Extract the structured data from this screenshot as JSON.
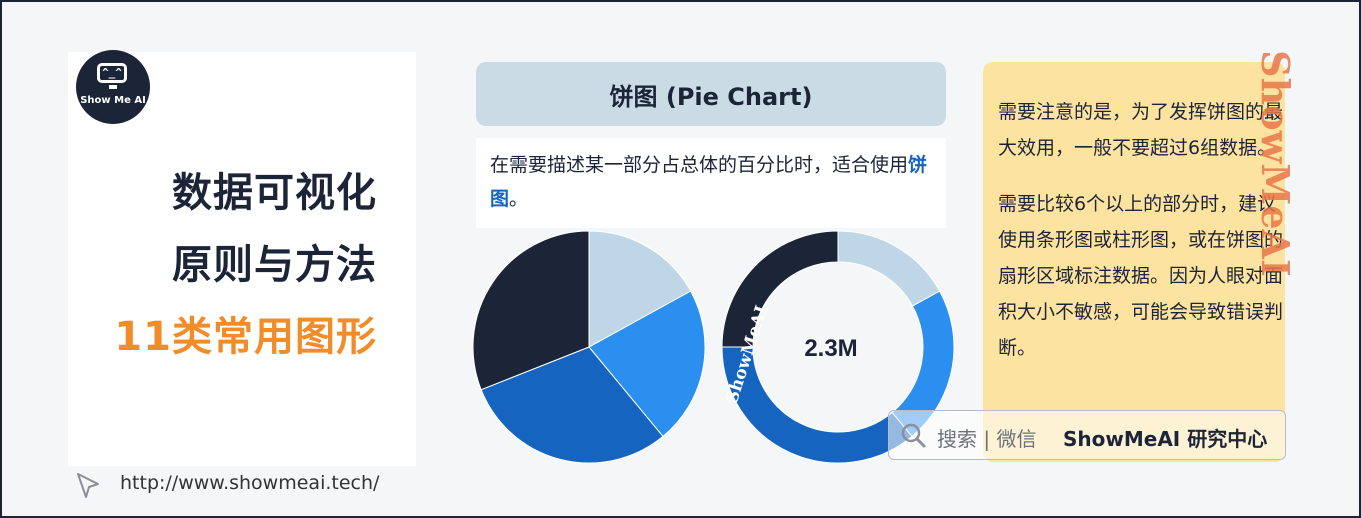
{
  "logo": {
    "screen_text": "^_^",
    "brand": "Show Me AI"
  },
  "titles": {
    "line1": "数据可视化",
    "line2": "原则与方法",
    "line3": "11类常用图形"
  },
  "footer": {
    "url": "http://www.showmeai.tech/"
  },
  "header": {
    "title": "饼图 (Pie Chart)"
  },
  "description": {
    "text_before": "在需要描述某一部分占总体的百分比时，适合使用",
    "highlight": "饼图",
    "text_after": "。"
  },
  "chart_data": [
    {
      "type": "pie",
      "slices": [
        {
          "value": 17,
          "color": "#bfd6e6"
        },
        {
          "value": 22,
          "color": "#2b8ff0"
        },
        {
          "value": 30,
          "color": "#1565c0"
        },
        {
          "value": 31,
          "color": "#1c2438"
        }
      ]
    },
    {
      "type": "pie",
      "donut": true,
      "center_label": "2.3M",
      "ring_label": "ShowMeAI",
      "slices": [
        {
          "value": 17,
          "color": "#bfd6e6"
        },
        {
          "value": 22,
          "color": "#2b8ff0"
        },
        {
          "value": 36,
          "color": "#1565c0"
        },
        {
          "value": 25,
          "color": "#1c2438"
        }
      ]
    }
  ],
  "note": {
    "paragraph1": "需要注意的是，为了发挥饼图的最大效用，一般不要超过6组数据。",
    "paragraph2": "需要比较6个以上的部分时，建议使用条形图或柱形图，或在饼图的扇形区域标注数据。因为人眼对面积大小不敏感，可能会导致错误判断。"
  },
  "watermark": {
    "text": "ShowMeAI"
  },
  "search": {
    "label": "搜索 | 微信",
    "brand": "ShowMeAI 研究中心"
  },
  "colors": {
    "dark": "#1c2438",
    "accent": "#f28c28",
    "blue": "#1565c0",
    "note_bg": "#fde3a0",
    "header_bg": "#cbdbe6"
  }
}
